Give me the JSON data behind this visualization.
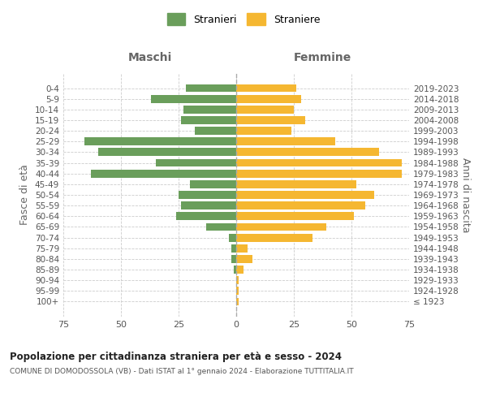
{
  "age_groups": [
    "100+",
    "95-99",
    "90-94",
    "85-89",
    "80-84",
    "75-79",
    "70-74",
    "65-69",
    "60-64",
    "55-59",
    "50-54",
    "45-49",
    "40-44",
    "35-39",
    "30-34",
    "25-29",
    "20-24",
    "15-19",
    "10-14",
    "5-9",
    "0-4"
  ],
  "birth_years": [
    "≤ 1923",
    "1924-1928",
    "1929-1933",
    "1934-1938",
    "1939-1943",
    "1944-1948",
    "1949-1953",
    "1954-1958",
    "1959-1963",
    "1964-1968",
    "1969-1973",
    "1974-1978",
    "1979-1983",
    "1984-1988",
    "1989-1993",
    "1994-1998",
    "1999-2003",
    "2004-2008",
    "2009-2013",
    "2014-2018",
    "2019-2023"
  ],
  "maschi": [
    0,
    0,
    0,
    1,
    2,
    2,
    3,
    13,
    26,
    24,
    25,
    20,
    63,
    35,
    60,
    66,
    18,
    24,
    23,
    37,
    22
  ],
  "femmine": [
    1,
    1,
    1,
    3,
    7,
    5,
    33,
    39,
    51,
    56,
    60,
    52,
    72,
    72,
    62,
    43,
    24,
    30,
    25,
    28,
    26
  ],
  "color_maschi": "#6a9e5b",
  "color_femmine": "#f5b731",
  "title_main": "Popolazione per cittadinanza straniera per età e sesso - 2024",
  "title_sub": "COMUNE DI DOMODOSSOLA (VB) - Dati ISTAT al 1° gennaio 2024 - Elaborazione TUTTITALIA.IT",
  "legend_maschi": "Stranieri",
  "legend_femmine": "Straniere",
  "label_left": "Maschi",
  "label_right": "Femmine",
  "ylabel_left": "Fasce di età",
  "ylabel_right": "Anni di nascita",
  "xlim": 75,
  "background_color": "#ffffff",
  "grid_color": "#cccccc"
}
